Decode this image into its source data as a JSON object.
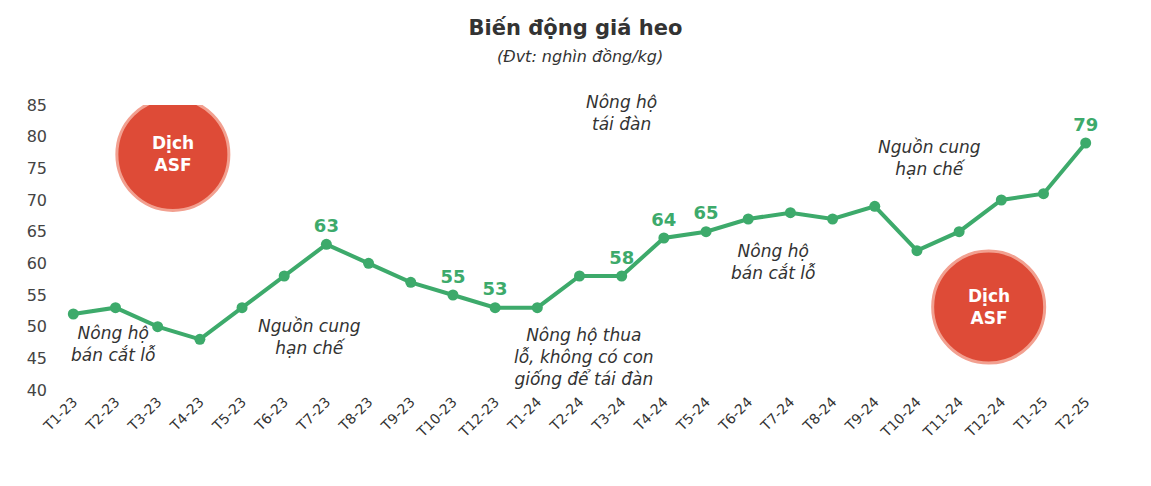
{
  "chart_data": {
    "type": "line",
    "title": "Biến động giá heo",
    "subtitle": "(Đvt: nghìn đồng/kg)",
    "categories": [
      "T1-23",
      "T2-23",
      "T3-23",
      "T4-23",
      "T5-23",
      "T6-23",
      "T7-23",
      "T8-23",
      "T9-23",
      "T10-23",
      "T12-23",
      "T1-24",
      "T2-24",
      "T3-24",
      "T4-24",
      "T5-24",
      "T6-24",
      "T7-24",
      "T8-24",
      "T9-24",
      "T10-24",
      "T11-24",
      "T12-24",
      "T1-25",
      "T2-25"
    ],
    "values": [
      52,
      53,
      50,
      48,
      53,
      58,
      63,
      60,
      57,
      55,
      53,
      53,
      58,
      58,
      64,
      65,
      67,
      68,
      67,
      69,
      62,
      65,
      70,
      71,
      79
    ],
    "value_labels": [
      null,
      null,
      null,
      null,
      null,
      null,
      "63",
      null,
      null,
      "55",
      "53",
      null,
      null,
      "58",
      "64",
      "65",
      null,
      null,
      null,
      null,
      null,
      null,
      null,
      null,
      "79"
    ],
    "data_labels": true,
    "color": "#3daa6b",
    "marker": "circle",
    "ylim": [
      40,
      85
    ],
    "yticks": [
      40,
      45,
      50,
      55,
      60,
      65,
      70,
      75,
      80,
      85
    ],
    "grid": false,
    "annotations": [
      {
        "text": "Dịch\nASF"
      },
      {
        "text": "Nông hộ\nbán cắt lỗ"
      },
      {
        "text": "Nguồn cung\nhạn chế"
      },
      {
        "text": "Nông hộ\ntái đàn"
      },
      {
        "text": "Nông hộ thua\nlỗ, không có con\ngiống để tái đàn"
      },
      {
        "text": "Nông hộ\nbán cắt lỗ"
      },
      {
        "text": "Nguồn cung\nhạn chế"
      },
      {
        "text": "Dịch\nASF"
      }
    ]
  }
}
